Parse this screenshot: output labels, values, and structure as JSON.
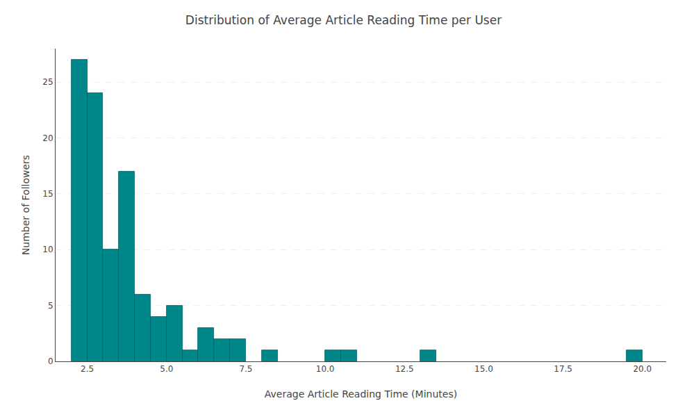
{
  "chart_data": {
    "type": "histogram",
    "title": "Distribution of Average Article Reading Time per User",
    "xlabel": "Average Article Reading Time (Minutes)",
    "ylabel": "Number of Followers",
    "bins": [
      2.0,
      2.5,
      3.0,
      3.5,
      4.0,
      4.5,
      5.0,
      5.5,
      6.0,
      6.5,
      7.0,
      7.5,
      8.0,
      8.5,
      9.0,
      9.5,
      10.0,
      10.5,
      11.0,
      11.5,
      12.0,
      12.5,
      13.0,
      13.5,
      14.0,
      14.5,
      15.0,
      15.5,
      16.0,
      16.5,
      17.0,
      17.5,
      18.0,
      18.5,
      19.0,
      19.5,
      20.0
    ],
    "values": [
      27,
      24,
      10,
      17,
      6,
      4,
      5,
      1,
      3,
      2,
      2,
      0,
      1,
      0,
      0,
      0,
      1,
      1,
      0,
      0,
      0,
      0,
      1,
      0,
      0,
      0,
      0,
      0,
      0,
      0,
      0,
      0,
      0,
      0,
      0,
      1
    ],
    "color": "#00878A",
    "xlim": [
      1.5,
      20.75
    ],
    "ylim": [
      0,
      28
    ],
    "xticks": [
      2.5,
      {
        "value": 5,
        "label": "5.0"
      },
      7.5,
      {
        "value": 10,
        "label": "10.0"
      },
      12.5,
      {
        "value": 15,
        "label": "15.0"
      },
      17.5,
      {
        "value": 20,
        "label": "20.0"
      }
    ],
    "yticks": [
      0,
      5,
      10,
      15,
      20,
      25
    ],
    "grid": "y"
  }
}
